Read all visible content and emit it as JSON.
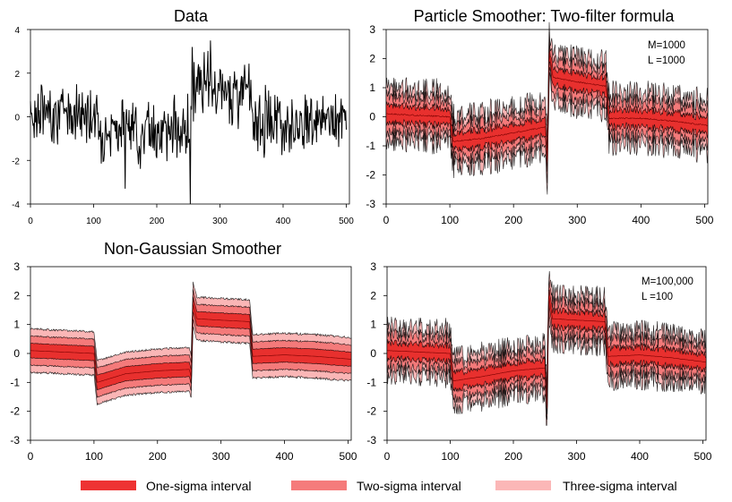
{
  "colors": {
    "one_sigma": "#e8302e",
    "two_sigma": "#f47a7a",
    "three_sigma": "#fab6b6",
    "line": "#000000",
    "legend_one": "#ee3333",
    "legend_two": "#f57b7b",
    "legend_three": "#fbb7b7"
  },
  "legend": {
    "one": "One-sigma interval",
    "two": "Two-sigma interval",
    "three": "Three-sigma interval"
  },
  "chart_data": [
    {
      "id": "data",
      "type": "line",
      "title": "Data",
      "xlim": [
        0,
        505
      ],
      "ylim": [
        -4,
        4
      ],
      "xticks": [
        "0",
        "100",
        "200",
        "300",
        "400",
        "500"
      ],
      "yticks": [
        "-4",
        "-2",
        "0",
        "2",
        "4"
      ],
      "segments": [
        {
          "start": 0,
          "end": 105,
          "mean": 0.2
        },
        {
          "start": 105,
          "end": 255,
          "mean": -0.6
        },
        {
          "start": 255,
          "end": 350,
          "mean": 1.2
        },
        {
          "start": 350,
          "end": 505,
          "mean": -0.2
        }
      ],
      "noise_sd": 1.0,
      "extremes": [
        {
          "x": 253,
          "y": -4
        },
        {
          "x": 256,
          "y": 3.2
        },
        {
          "x": 285,
          "y": 3.5
        },
        {
          "x": 150,
          "y": -3.3
        }
      ]
    },
    {
      "id": "pf",
      "type": "area",
      "title": "Particle Smoother: Two-filter formula",
      "annotation": [
        "M=1000",
        "L  =1000"
      ],
      "xlim": [
        0,
        505
      ],
      "ylim": [
        -3,
        3
      ],
      "xticks": [
        "0",
        "100",
        "200",
        "300",
        "400",
        "500"
      ],
      "yticks": [
        "-3",
        "-2",
        "-1",
        "0",
        "1",
        "2",
        "3"
      ],
      "mean_x": [
        0,
        50,
        100,
        105,
        150,
        200,
        250,
        253,
        256,
        262,
        300,
        345,
        350,
        400,
        450,
        505
      ],
      "mean_y": [
        0.1,
        0.05,
        0.0,
        -0.85,
        -0.75,
        -0.55,
        -0.35,
        -1.5,
        2.2,
        1.35,
        1.2,
        1.05,
        -0.05,
        -0.05,
        -0.15,
        -0.3
      ],
      "sigma": 0.3,
      "noise": 0.07
    },
    {
      "id": "ng",
      "type": "area",
      "title": "Non-Gaussian Smoother",
      "annotation": [],
      "xlim": [
        0,
        505
      ],
      "ylim": [
        -3,
        3
      ],
      "xticks": [
        "0",
        "100",
        "200",
        "300",
        "400",
        "500"
      ],
      "yticks": [
        "-3",
        "-2",
        "-1",
        "0",
        "1",
        "2",
        "3"
      ],
      "mean_x": [
        0,
        50,
        100,
        105,
        150,
        200,
        250,
        253,
        256,
        262,
        300,
        345,
        350,
        400,
        450,
        505
      ],
      "mean_y": [
        0.1,
        0.05,
        0.0,
        -1.0,
        -0.7,
        -0.6,
        -0.55,
        -0.8,
        1.7,
        1.2,
        1.15,
        1.1,
        -0.1,
        -0.05,
        -0.1,
        -0.2
      ],
      "sigma": 0.25,
      "noise": 0.0
    },
    {
      "id": "pf2",
      "type": "area",
      "title": "",
      "annotation": [
        "M=100,000",
        "L  =100"
      ],
      "xlim": [
        0,
        505
      ],
      "ylim": [
        -3,
        3
      ],
      "xticks": [
        "0",
        "100",
        "200",
        "300",
        "400",
        "500"
      ],
      "yticks": [
        "-3",
        "-2",
        "-1",
        "0",
        "1",
        "2",
        "3"
      ],
      "mean_x": [
        0,
        50,
        100,
        105,
        150,
        200,
        250,
        253,
        256,
        262,
        300,
        345,
        350,
        400,
        450,
        505
      ],
      "mean_y": [
        0.1,
        0.05,
        0.0,
        -0.95,
        -0.8,
        -0.6,
        -0.5,
        -1.9,
        2.0,
        1.2,
        1.15,
        1.1,
        -0.1,
        -0.05,
        -0.15,
        -0.3
      ],
      "sigma": 0.28,
      "noise": 0.02
    }
  ]
}
